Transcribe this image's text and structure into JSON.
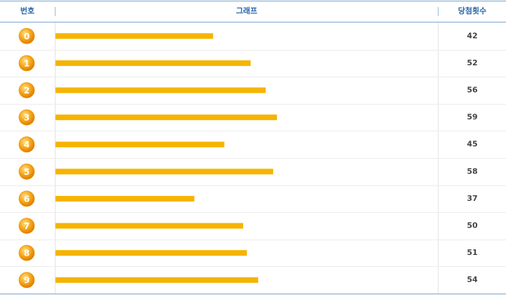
{
  "chart_data": {
    "type": "bar",
    "headers": [
      "번호",
      "그래프",
      "당첨횟수"
    ],
    "categories": [
      "0",
      "1",
      "2",
      "3",
      "4",
      "5",
      "6",
      "7",
      "8",
      "9"
    ],
    "values": [
      42,
      52,
      56,
      59,
      45,
      58,
      37,
      50,
      51,
      54
    ],
    "color": "#f5b400"
  }
}
